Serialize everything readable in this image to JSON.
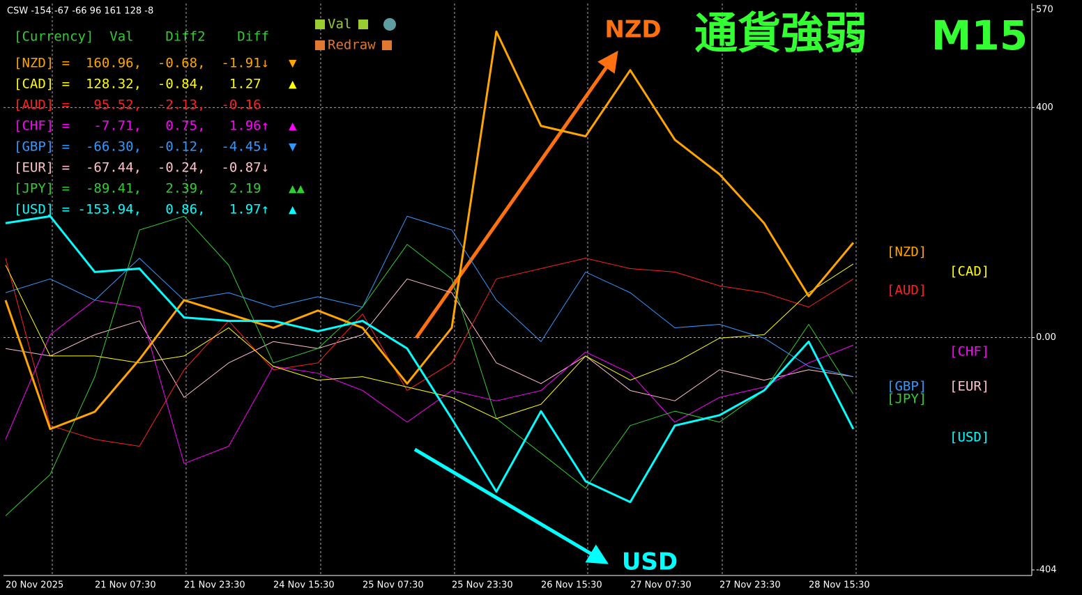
{
  "header": "CSW -154 -67 -66 96 161 128 -8",
  "panel": {
    "columns": "[Currency]  Val    Diff2    Diff",
    "rows": [
      {
        "text": "[NZD] =  160.96,  -0.68,  -1.91↓",
        "mark": "▼"
      },
      {
        "text": "[CAD] =  128.32,  -0.84,   1.27",
        "mark": "▲"
      },
      {
        "text": "[AUD] =   95.52,  -2.13,  -0.16"
      },
      {
        "text": "[CHF] =   -7.71,   0.75,   1.96↑",
        "mark": "▲"
      },
      {
        "text": "[GBP] =  -66.30,  -0.12,  -4.45↓",
        "mark": "▼"
      },
      {
        "text": "[EUR] =  -67.44,  -0.24,  -0.87↓"
      },
      {
        "text": "[JPY] =  -89.41,   2.39,   2.19",
        "mark": "▲▲"
      },
      {
        "text": "[USD] = -153.94,   0.86,   1.97↑",
        "mark": "▲"
      }
    ]
  },
  "buttons": [
    "Val",
    "Redraw"
  ],
  "chart_data": {
    "type": "line",
    "title": "通貨強弱",
    "subtitle": "M15",
    "annotations": [
      "NZD",
      "USD"
    ],
    "categories": [
      "20 Nov 2025",
      null,
      "21 Nov 07:30",
      null,
      "21 Nov 23:30",
      null,
      "24 Nov 15:30",
      null,
      "25 Nov 07:30",
      null,
      "25 Nov 23:30",
      null,
      "26 Nov 15:30",
      null,
      "27 Nov 07:30",
      null,
      "27 Nov 23:30",
      null,
      "28 Nov 15:30",
      null
    ],
    "ylim": [
      -404,
      570
    ],
    "yticks": [
      570,
      400,
      {
        "value": 0,
        "label": "0.00"
      },
      -404
    ],
    "grid": true,
    "series": [
      {
        "name": "[NZD]",
        "color": "#ffa500",
        "width": 3,
        "values": [
          65,
          -159,
          -129,
          -38,
          65,
          41,
          17,
          47,
          17,
          -80,
          17,
          532,
          368,
          350,
          465,
          344,
          284,
          199,
          72,
          165
        ]
      },
      {
        "name": "[CAD]",
        "color": "#ffff00",
        "width": 1,
        "values": [
          126,
          -32,
          -32,
          -44,
          -32,
          17,
          -50,
          -74,
          -68,
          -86,
          -104,
          -141,
          -116,
          -32,
          -74,
          -44,
          -1,
          5,
          78,
          128
        ]
      },
      {
        "name": "[AUD]",
        "color": "#ff2020",
        "width": 1,
        "values": [
          138,
          -153,
          -177,
          -189,
          -56,
          29,
          -56,
          -44,
          41,
          -92,
          -44,
          102,
          120,
          138,
          120,
          114,
          90,
          78,
          53,
          102
        ]
      },
      {
        "name": "[CHF]",
        "color": "#ff00ff",
        "width": 1,
        "values": [
          -177,
          5,
          65,
          53,
          -219,
          -189,
          -50,
          -62,
          -92,
          -147,
          -92,
          -110,
          -92,
          -25,
          -62,
          -147,
          -104,
          -86,
          -44,
          -13
        ]
      },
      {
        "name": "[GBP]",
        "color": "#3399ff",
        "width": 1,
        "values": [
          78,
          102,
          65,
          138,
          65,
          78,
          53,
          71,
          53,
          211,
          187,
          65,
          -7,
          114,
          78,
          17,
          23,
          -1,
          -50,
          -68
        ]
      },
      {
        "name": "[EUR]",
        "color": "#ffc0cb",
        "width": 1,
        "values": [
          -19,
          -32,
          5,
          29,
          -104,
          -44,
          -7,
          -19,
          5,
          102,
          78,
          -44,
          -80,
          -32,
          -92,
          -110,
          -56,
          -74,
          -56,
          -68
        ]
      },
      {
        "name": "[JPY]",
        "color": "#32cd32",
        "width": 1,
        "values": [
          -310,
          -238,
          -68,
          187,
          211,
          126,
          -44,
          -19,
          53,
          162,
          102,
          -141,
          -201,
          -262,
          -153,
          -128,
          -147,
          -92,
          23,
          -98
        ]
      },
      {
        "name": "[USD]",
        "color": "#00ffff",
        "width": 3,
        "values": [
          199,
          211,
          114,
          120,
          35,
          29,
          29,
          11,
          29,
          -19,
          -141,
          -268,
          -128,
          -250,
          -286,
          -153,
          -135,
          -92,
          -7,
          -159
        ]
      }
    ]
  }
}
